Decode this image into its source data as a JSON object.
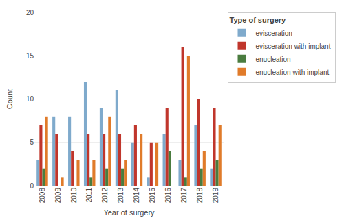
{
  "chart_data": {
    "type": "bar",
    "categories": [
      "2008",
      "2009",
      "2010",
      "2011",
      "2012",
      "2013",
      "2014",
      "2015",
      "2016",
      "2017",
      "2018",
      "2019"
    ],
    "series": [
      {
        "name": "evisceration",
        "color": "#7faacc",
        "values": [
          3,
          8,
          8,
          12,
          9,
          11,
          5,
          1,
          6,
          3,
          7,
          2
        ]
      },
      {
        "name": "evisceration with implant",
        "color": "#c0362c",
        "values": [
          7,
          6,
          4,
          6,
          6,
          6,
          7,
          5,
          9,
          16,
          10,
          9
        ]
      },
      {
        "name": "enucleation",
        "color": "#4a7c3f",
        "values": [
          2,
          0,
          0,
          1,
          2,
          2,
          0,
          0,
          4,
          1,
          2,
          3
        ]
      },
      {
        "name": "enucleation with implant",
        "color": "#e07b2a",
        "values": [
          8,
          1,
          3,
          3,
          8,
          3,
          6,
          5,
          0,
          15,
          4,
          7
        ]
      }
    ],
    "legend_title": "Type of surgery",
    "xlabel": "Year of surgery",
    "ylabel": "Count",
    "ylim": [
      0,
      20
    ],
    "yticks": [
      0,
      5,
      10,
      15,
      20
    ],
    "grid": true,
    "legend": "right"
  }
}
